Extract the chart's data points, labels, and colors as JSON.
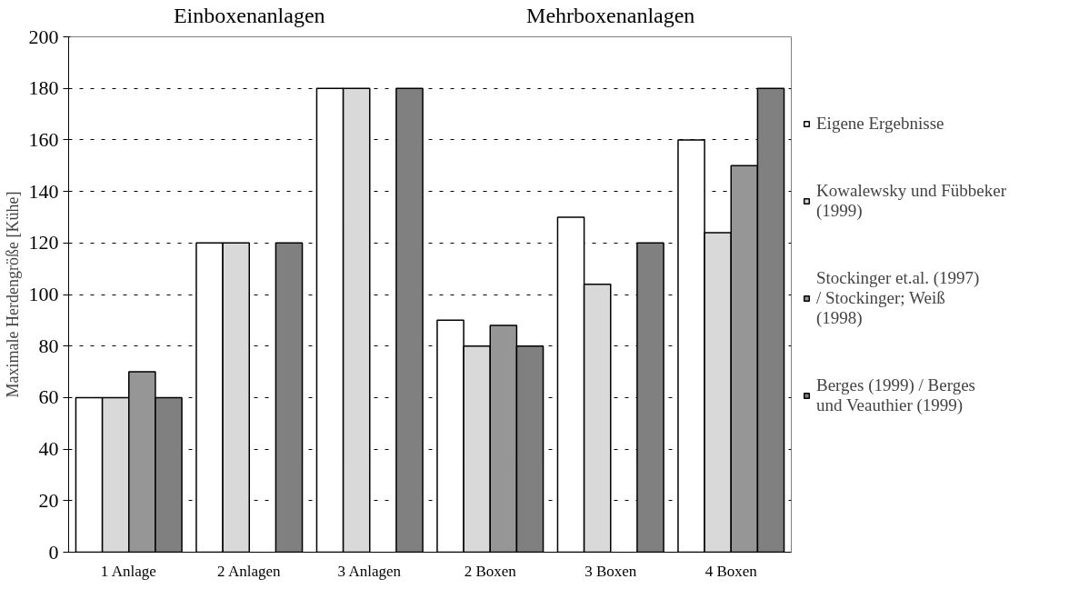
{
  "chart_data": {
    "type": "bar",
    "ylabel": "Maximale Herdengröße [Kühe]",
    "categories": [
      "1 Anlage",
      "2 Anlagen",
      "3 Anlagen",
      "2 Boxen",
      "3 Boxen",
      "4 Boxen"
    ],
    "series": [
      {
        "name": "Eigene Ergebnisse",
        "color": "#ffffff",
        "values": [
          60,
          120,
          180,
          90,
          130,
          160
        ]
      },
      {
        "name": "Kowalewsky und Fübbeker (1999)",
        "color": "#d9d9d9",
        "values": [
          60,
          120,
          180,
          80,
          104,
          124
        ]
      },
      {
        "name": "Stockinger et.al. (1997) / Stockinger; Weiß (1998)",
        "color": "#969696",
        "values": [
          70,
          null,
          null,
          88,
          null,
          150
        ]
      },
      {
        "name": "Berges (1999) / Berges und Veauthier (1999)",
        "color": "#808080",
        "values": [
          60,
          120,
          180,
          80,
          120,
          180
        ]
      }
    ],
    "annotations": [
      "Einboxenanlagen",
      "Mehrboxenanlagen"
    ],
    "ylim": [
      0,
      200
    ],
    "yticks": [
      0,
      20,
      40,
      60,
      80,
      100,
      120,
      140,
      160,
      180,
      200
    ],
    "grid": "y",
    "legend": "right"
  }
}
